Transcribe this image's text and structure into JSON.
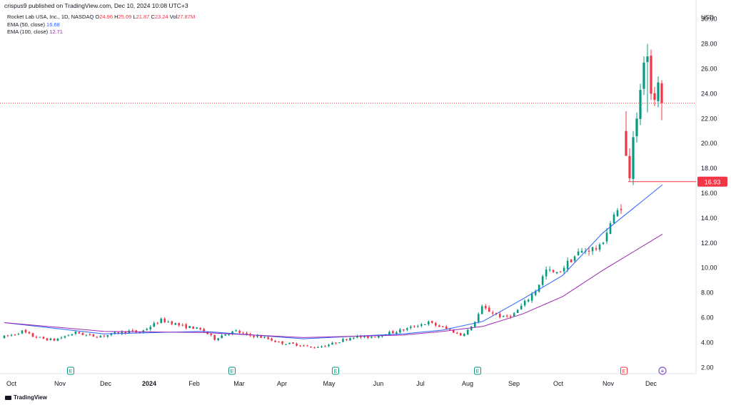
{
  "publisher_line": "crispus9 published on TradingView.com, Dec 10, 2024 10:08 UTC+3",
  "currency": "USD",
  "brand": "TradingView",
  "legend": {
    "symbol": "Rocket Lab USA, Inc., 1D, NASDAQ",
    "ohlc": [
      {
        "key": "O",
        "value": "24.96"
      },
      {
        "key": "H",
        "value": "25.09"
      },
      {
        "key": "L",
        "value": "21.87"
      },
      {
        "key": "C",
        "value": "23.24"
      },
      {
        "key": "Vol",
        "value": "27.87M"
      }
    ],
    "ema50_label": "EMA (50, close)",
    "ema50_value": "16.68",
    "ema100_label": "EMA (100, close)",
    "ema100_value": "12.71"
  },
  "colors": {
    "up": "#089981",
    "down": "#f23645",
    "ema50": "#2962ff",
    "ema100": "#9c27b0",
    "last_price_line": "#f23645",
    "price_badge": "#f23645"
  },
  "chart_data": {
    "type": "candlestick",
    "title": "Rocket Lab USA, Inc., 1D, NASDAQ",
    "ylabel": "USD",
    "ylim": [
      1.5,
      30.5
    ],
    "y_ticks": [
      "2.00",
      "4.00",
      "6.00",
      "8.00",
      "10.00",
      "12.00",
      "14.00",
      "16.00",
      "18.00",
      "20.00",
      "22.00",
      "24.00",
      "26.00",
      "28.00",
      "30.00"
    ],
    "x_ticks": [
      "Oct",
      "Nov",
      "Dec",
      "2024",
      "Feb",
      "Mar",
      "Apr",
      "May",
      "Jun",
      "Jul",
      "Aug",
      "Sep",
      "Oct",
      "Nov",
      "Dec"
    ],
    "last_price": 23.24,
    "marked_level": 16.93,
    "marked_level_label": "16.93",
    "earnings_markers": [
      {
        "label": "E",
        "near": "Nov"
      },
      {
        "label": "E",
        "near": "Mar"
      },
      {
        "label": "E",
        "near": "May"
      },
      {
        "label": "E",
        "near": "Aug"
      },
      {
        "label": "E",
        "near": "Nov"
      }
    ],
    "dividend_marker": {
      "label": "+",
      "near": "Dec"
    },
    "price_path_weekly_close": [
      {
        "i": 0,
        "p": 4.4
      },
      {
        "i": 1,
        "p": 4.6
      },
      {
        "i": 2,
        "p": 4.9
      },
      {
        "i": 3,
        "p": 4.5
      },
      {
        "i": 4,
        "p": 4.3
      },
      {
        "i": 5,
        "p": 4.2
      },
      {
        "i": 6,
        "p": 4.5
      },
      {
        "i": 7,
        "p": 4.8
      },
      {
        "i": 8,
        "p": 4.6
      },
      {
        "i": 9,
        "p": 4.5
      },
      {
        "i": 10,
        "p": 4.6
      },
      {
        "i": 11,
        "p": 4.8
      },
      {
        "i": 12,
        "p": 4.9
      },
      {
        "i": 13,
        "p": 4.8
      },
      {
        "i": 14,
        "p": 5.3
      },
      {
        "i": 15,
        "p": 5.8
      },
      {
        "i": 16,
        "p": 5.6
      },
      {
        "i": 17,
        "p": 5.3
      },
      {
        "i": 18,
        "p": 5.2
      },
      {
        "i": 19,
        "p": 4.9
      },
      {
        "i": 20,
        "p": 4.3
      },
      {
        "i": 21,
        "p": 4.7
      },
      {
        "i": 22,
        "p": 4.9
      },
      {
        "i": 23,
        "p": 4.6
      },
      {
        "i": 24,
        "p": 4.5
      },
      {
        "i": 25,
        "p": 4.3
      },
      {
        "i": 26,
        "p": 4.0
      },
      {
        "i": 27,
        "p": 3.9
      },
      {
        "i": 28,
        "p": 3.8
      },
      {
        "i": 29,
        "p": 3.6
      },
      {
        "i": 30,
        "p": 3.7
      },
      {
        "i": 31,
        "p": 3.9
      },
      {
        "i": 32,
        "p": 4.2
      },
      {
        "i": 33,
        "p": 4.5
      },
      {
        "i": 34,
        "p": 4.4
      },
      {
        "i": 35,
        "p": 4.5
      },
      {
        "i": 36,
        "p": 4.7
      },
      {
        "i": 37,
        "p": 4.9
      },
      {
        "i": 38,
        "p": 5.1
      },
      {
        "i": 39,
        "p": 5.4
      },
      {
        "i": 40,
        "p": 5.6
      },
      {
        "i": 41,
        "p": 5.3
      },
      {
        "i": 42,
        "p": 5.0
      },
      {
        "i": 43,
        "p": 4.6
      },
      {
        "i": 44,
        "p": 5.2
      },
      {
        "i": 45,
        "p": 6.8
      },
      {
        "i": 46,
        "p": 6.4
      },
      {
        "i": 47,
        "p": 6.0
      },
      {
        "i": 48,
        "p": 6.3
      },
      {
        "i": 49,
        "p": 7.2
      },
      {
        "i": 50,
        "p": 8.2
      },
      {
        "i": 51,
        "p": 9.8
      },
      {
        "i": 52,
        "p": 9.5
      },
      {
        "i": 53,
        "p": 10.4
      },
      {
        "i": 54,
        "p": 11.2
      },
      {
        "i": 55,
        "p": 11.5
      },
      {
        "i": 56,
        "p": 11.6
      },
      {
        "i": 57,
        "p": 13.6
      },
      {
        "i": 58,
        "p": 15.0
      }
    ],
    "gap_sessions_close": [
      19.0,
      17.2,
      20.5,
      22.0,
      24.3,
      26.5,
      27.0,
      24.0,
      23.5,
      24.9,
      23.24
    ],
    "ema50_points": [
      {
        "i": 0,
        "v": 5.6
      },
      {
        "i": 10,
        "v": 4.7
      },
      {
        "i": 20,
        "v": 4.9
      },
      {
        "i": 30,
        "v": 4.3
      },
      {
        "i": 40,
        "v": 4.7
      },
      {
        "i": 44,
        "v": 5.0
      },
      {
        "i": 48,
        "v": 5.7
      },
      {
        "i": 52,
        "v": 7.5
      },
      {
        "i": 56,
        "v": 9.4
      },
      {
        "i": 60,
        "v": 12.8
      },
      {
        "i": 66,
        "v": 16.68
      }
    ],
    "ema100_points": [
      {
        "i": 0,
        "v": 5.6
      },
      {
        "i": 10,
        "v": 4.9
      },
      {
        "i": 20,
        "v": 4.8
      },
      {
        "i": 30,
        "v": 4.4
      },
      {
        "i": 40,
        "v": 4.6
      },
      {
        "i": 44,
        "v": 4.9
      },
      {
        "i": 48,
        "v": 5.3
      },
      {
        "i": 52,
        "v": 6.3
      },
      {
        "i": 56,
        "v": 7.7
      },
      {
        "i": 60,
        "v": 9.8
      },
      {
        "i": 66,
        "v": 12.71
      }
    ]
  }
}
